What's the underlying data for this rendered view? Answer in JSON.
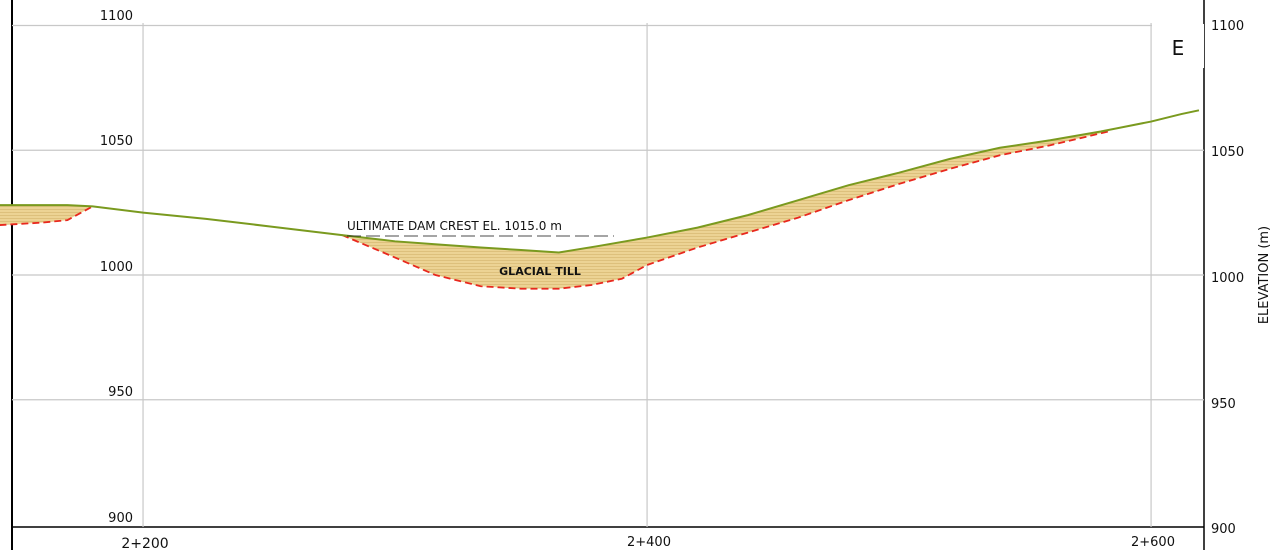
{
  "section_label": "E",
  "annotations": {
    "crest_note": "ULTIMATE DAM CREST EL. 1015.0 m",
    "material_label": "GLACIAL TILL"
  },
  "axis": {
    "right_label": "ELEVATION (m)",
    "elevation_ticks": [
      "1100",
      "1050",
      "1000",
      "950",
      "900"
    ],
    "chainage_ticks": [
      "2+200",
      "2+400",
      "2+600"
    ]
  },
  "colors": {
    "ground_line": "#7a9a1f",
    "till_boundary": "#e8281e",
    "till_fill": "#e9cf8f",
    "grid": "#c8c8c8"
  },
  "chart_data": {
    "type": "line",
    "x_unit": "m chainage",
    "y_unit": "m elevation",
    "xlim": [
      2148,
      2621
    ],
    "ylim": [
      899,
      1101
    ],
    "grid": true,
    "ground_surface": {
      "x": [
        2143,
        2170,
        2180,
        2200,
        2225,
        2250,
        2279,
        2300,
        2320,
        2334,
        2350,
        2365,
        2380,
        2400,
        2420,
        2440,
        2460,
        2480,
        2500,
        2520,
        2540,
        2560,
        2580,
        2600,
        2612,
        2619
      ],
      "y": [
        1028,
        1028,
        1027.5,
        1025,
        1022.5,
        1019.5,
        1016,
        1013.5,
        1012,
        1011,
        1010,
        1009,
        1011.5,
        1015,
        1019,
        1024,
        1030,
        1036,
        1041,
        1046.5,
        1051,
        1054,
        1057.5,
        1061.5,
        1064.5,
        1066
      ]
    },
    "glacial_till_base": {
      "x": [
        2143,
        2160,
        2170,
        2180,
        2279,
        2300,
        2316,
        2334,
        2350,
        2365,
        2378,
        2390,
        2400,
        2420,
        2440,
        2460,
        2480,
        2500,
        2520,
        2540,
        2560,
        2583
      ],
      "y": [
        1020,
        1021,
        1022,
        1027.5,
        1016,
        1007,
        1000,
        995.5,
        994.5,
        994.5,
        996,
        998.5,
        1004,
        1011,
        1017,
        1023,
        1030,
        1036.5,
        1042.5,
        1048,
        1052,
        1057.5
      ]
    }
  }
}
